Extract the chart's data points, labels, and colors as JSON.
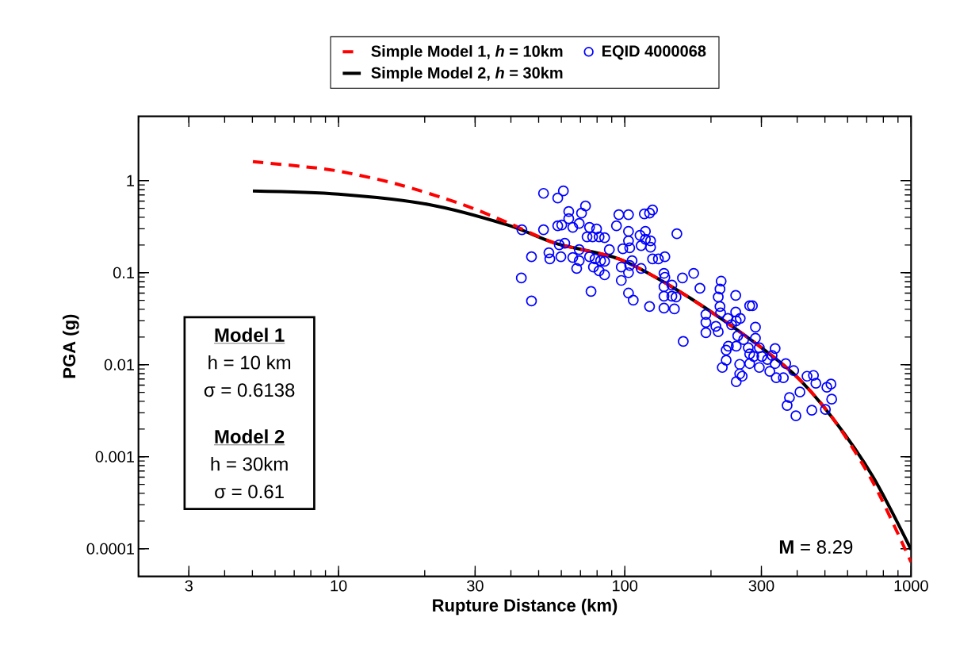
{
  "chart_data": {
    "type": "scatter",
    "xlabel": "Rupture Distance (km)",
    "ylabel": "PGA (g)",
    "log": "xy",
    "grid": false,
    "legend": "top",
    "xlim": [
      2,
      1000
    ],
    "ylim": [
      5e-05,
      5
    ],
    "xticks": [
      3,
      10,
      30,
      100,
      300,
      1000
    ],
    "yticks": [
      0.0001,
      0.001,
      0.01,
      0.1,
      1
    ],
    "annotations": [
      "Model 1",
      "h = 10 km",
      "σ = 0.6138",
      "Model 2",
      "h = 30km",
      "σ = 0.61",
      "**M** = 8.29"
    ],
    "series": [
      {
        "name": "Simple Model 1, *h* = 10km",
        "type": "line",
        "color": "#ff0000",
        "line_style": "dashed",
        "marker": "none",
        "x": [
          5.02,
          7.41,
          10.0,
          15.9,
          26.6,
          39.0,
          57.2,
          95.3,
          149.0,
          248.0,
          389.0,
          535.0,
          736.0,
          1000.0
        ],
        "values": [
          1.61,
          1.43,
          1.27,
          0.924,
          0.563,
          0.35,
          0.209,
          0.141,
          0.0676,
          0.0237,
          0.00796,
          0.00257,
          0.000528,
          7.14e-05
        ]
      },
      {
        "name": "EQID 4000068",
        "color": "#0000ff",
        "marker": "circle",
        "x": [
          43.5,
          43.7,
          47.2,
          47.2,
          52,
          52,
          54.3,
          54.7,
          58.3,
          58.3,
          59,
          59.8,
          60.2,
          61,
          61.7,
          63.7,
          63.7,
          65.8,
          65.8,
          67.9,
          69.3,
          69.3,
          69.3,
          70.6,
          72.9,
          73.8,
          75.3,
          75.3,
          76.2,
          77.2,
          77.7,
          78.7,
          79.7,
          81.3,
          81.3,
          82.3,
          85,
          85,
          85,
          88.3,
          93.5,
          95.3,
          97.2,
          97.2,
          98.4,
          103,
          103,
          103,
          103,
          103,
          104,
          104,
          106,
          107,
          113,
          114,
          114,
          117,
          118,
          118,
          122,
          122,
          123,
          123,
          125,
          125,
          131,
          137,
          137,
          137,
          137,
          138,
          138,
          146,
          146,
          149,
          151,
          152,
          159,
          160,
          174,
          183,
          192,
          192,
          192,
          208,
          212,
          212,
          215,
          215,
          216,
          217,
          219,
          226,
          226,
          229,
          230,
          236,
          244,
          244,
          245,
          245,
          245,
          248,
          252,
          252,
          253,
          257,
          260,
          270,
          273,
          273,
          273,
          279,
          282,
          286,
          286,
          295,
          295,
          301,
          315,
          321,
          327,
          335,
          335,
          338,
          358,
          365,
          369,
          376,
          389,
          396,
          409,
          433,
          450,
          456,
          465,
          502,
          508,
          525,
          528
        ],
        "values": [
          0.0875,
          0.293,
          0.149,
          0.0493,
          0.728,
          0.293,
          0.165,
          0.141,
          0.647,
          0.323,
          0.201,
          0.149,
          0.33,
          0.773,
          0.209,
          0.462,
          0.386,
          0.311,
          0.146,
          0.111,
          0.343,
          0.178,
          0.135,
          0.444,
          0.531,
          0.245,
          0.311,
          0.149,
          0.0625,
          0.245,
          0.115,
          0.141,
          0.299,
          0.245,
          0.105,
          0.135,
          0.24,
          0.133,
          0.0947,
          0.178,
          0.323,
          0.427,
          0.115,
          0.0824,
          0.182,
          0.427,
          0.281,
          0.222,
          0.1,
          0.06,
          0.186,
          0.12,
          0.135,
          0.0502,
          0.255,
          0.197,
          0.111,
          0.435,
          0.281,
          0.231,
          0.444,
          0.0429,
          0.222,
          0.189,
          0.141,
          0.481,
          0.141,
          0.0985,
          0.0704,
          0.0555,
          0.0412,
          0.149,
          0.0892,
          0.0732,
          0.0555,
          0.0404,
          0.0544,
          0.265,
          0.0875,
          0.0179,
          0.0985,
          0.0676,
          0.0352,
          0.0289,
          0.0223,
          0.0261,
          0.0544,
          0.0228,
          0.0663,
          0.0429,
          0.0366,
          0.0808,
          0.00933,
          0.0144,
          0.0112,
          0.0319,
          0.0159,
          0.0272,
          0.0566,
          0.0373,
          0.03,
          0.0159,
          0.00653,
          0.0206,
          0.0101,
          0.00796,
          0.0319,
          0.0075,
          0.0187,
          0.0153,
          0.0437,
          0.0131,
          0.0103,
          0.0437,
          0.0123,
          0.0256,
          0.0194,
          0.0153,
          0.00933,
          0.0123,
          0.0114,
          0.00845,
          0.0126,
          0.015,
          0.0103,
          0.00721,
          0.00721,
          0.0103,
          0.00361,
          0.0044,
          0.00862,
          0.00279,
          0.00505,
          0.0075,
          0.0032,
          0.00765,
          0.00628,
          0.00327,
          0.00569,
          0.00616,
          0.00422
        ]
      },
      {
        "name": "Simple Model 2, *h* = 30km",
        "type": "line",
        "color": "#000000",
        "line_style": "solid",
        "marker": "none",
        "x": [
          5.02,
          10.0,
          20.6,
          39.0,
          57.2,
          95.3,
          149.0,
          248.0,
          389.0,
          535.0,
          736.0,
          1000.0
        ],
        "values": [
          0.773,
          0.714,
          0.552,
          0.33,
          0.209,
          0.141,
          0.0676,
          0.0237,
          0.00796,
          0.00257,
          0.000606,
          9.8e-05
        ]
      }
    ]
  }
}
